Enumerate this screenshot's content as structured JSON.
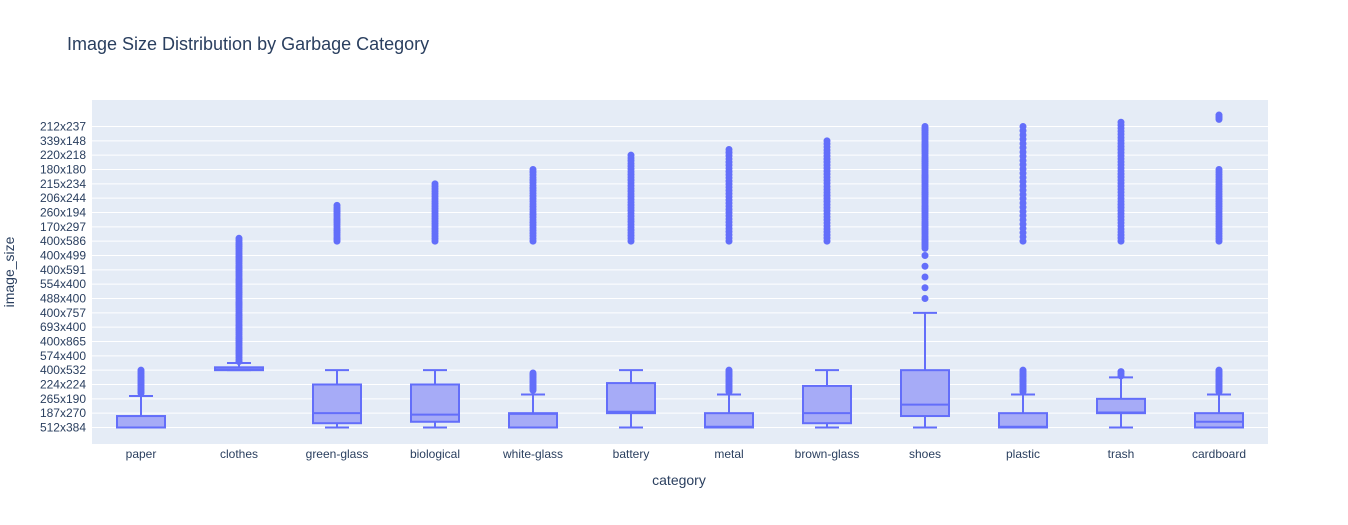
{
  "chart_data": {
    "type": "box",
    "title": "Image Size Distribution by Garbage Category",
    "xlabel": "category",
    "ylabel": "image_size",
    "categories": [
      "paper",
      "clothes",
      "green-glass",
      "biological",
      "white-glass",
      "battery",
      "metal",
      "brown-glass",
      "shoes",
      "plastic",
      "trash",
      "cardboard"
    ],
    "y_ticks": [
      "512x384",
      "187x270",
      "265x190",
      "224x224",
      "400x532",
      "574x400",
      "400x865",
      "693x400",
      "400x757",
      "488x400",
      "554x400",
      "400x591",
      "400x499",
      "400x586",
      "170x297",
      "260x194",
      "206x244",
      "215x234",
      "180x180",
      "220x218",
      "339x148",
      "212x237"
    ],
    "grid": true,
    "colors": {
      "box_line": "#636efa",
      "box_fill": "#a6abf7",
      "plot_bg": "#e5ecf6",
      "grid": "#ffffff",
      "text": "#2a3f5f"
    },
    "series": [
      {
        "category": "paper",
        "lower_fence": 0,
        "q1": 0,
        "median": 0,
        "q3": 0.8,
        "upper_fence": 2.2,
        "outliers": [
          [
            2.4,
            4.0,
            14
          ]
        ]
      },
      {
        "category": "clothes",
        "lower_fence": 4,
        "q1": 4.0,
        "median": 4.05,
        "q3": 4.2,
        "upper_fence": 4.5,
        "outliers": [
          [
            4.6,
            13.2,
            60
          ]
        ]
      },
      {
        "category": "green-glass",
        "lower_fence": 0,
        "q1": 0.3,
        "median": 1,
        "q3": 3,
        "upper_fence": 4,
        "outliers": [
          [
            13,
            15.5,
            18
          ]
        ]
      },
      {
        "category": "biological",
        "lower_fence": 0,
        "q1": 0.4,
        "median": 0.9,
        "q3": 3,
        "upper_fence": 4,
        "outliers": [
          [
            13,
            17,
            24
          ]
        ]
      },
      {
        "category": "white-glass",
        "lower_fence": 0,
        "q1": 0,
        "median": 0.95,
        "q3": 1,
        "upper_fence": 2.3,
        "outliers": [
          [
            2.6,
            3.8,
            12
          ],
          [
            13,
            18,
            28
          ]
        ]
      },
      {
        "category": "battery",
        "lower_fence": 0,
        "q1": 1,
        "median": 1.1,
        "q3": 3.1,
        "upper_fence": 4,
        "outliers": [
          [
            13,
            19,
            32
          ]
        ]
      },
      {
        "category": "metal",
        "lower_fence": 0,
        "q1": 0,
        "median": 0.05,
        "q3": 1,
        "upper_fence": 2.3,
        "outliers": [
          [
            2.5,
            4,
            14
          ],
          [
            13,
            19.4,
            30
          ]
        ]
      },
      {
        "category": "brown-glass",
        "lower_fence": 0,
        "q1": 0.3,
        "median": 1,
        "q3": 2.9,
        "upper_fence": 4,
        "outliers": [
          [
            13,
            20,
            34
          ]
        ]
      },
      {
        "category": "shoes",
        "lower_fence": 0,
        "q1": 0.8,
        "median": 1.6,
        "q3": 4,
        "upper_fence": 8,
        "outliers": [
          [
            9,
            12,
            5
          ],
          [
            12.5,
            21,
            60
          ]
        ]
      },
      {
        "category": "plastic",
        "lower_fence": 0,
        "q1": 0,
        "median": 0.05,
        "q3": 1,
        "upper_fence": 2.3,
        "outliers": [
          [
            2.5,
            4,
            14
          ],
          [
            13,
            21,
            28
          ]
        ]
      },
      {
        "category": "trash",
        "lower_fence": 0,
        "q1": 1,
        "median": 1.05,
        "q3": 2,
        "upper_fence": 3.5,
        "outliers": [
          [
            3.6,
            3.9,
            3
          ],
          [
            13,
            21.3,
            40
          ]
        ]
      },
      {
        "category": "cardboard",
        "lower_fence": 0,
        "q1": 0,
        "median": 0.4,
        "q3": 1,
        "upper_fence": 2.3,
        "outliers": [
          [
            2.5,
            4,
            14
          ],
          [
            13,
            18,
            30
          ],
          [
            21.5,
            21.8,
            4
          ]
        ]
      }
    ]
  }
}
